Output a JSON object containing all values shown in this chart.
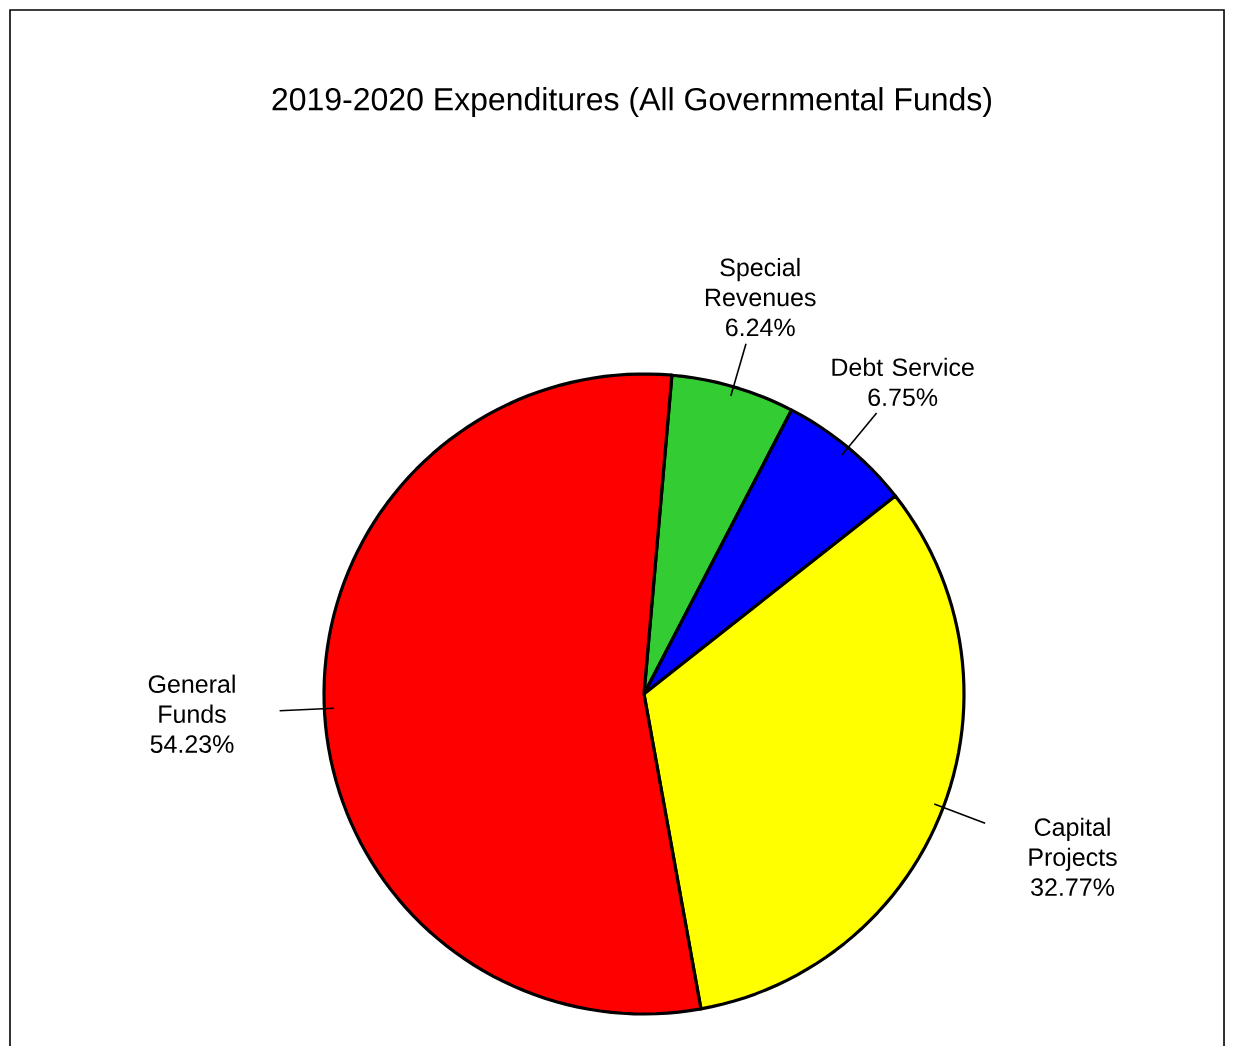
{
  "chart_data": {
    "type": "pie",
    "title": "2019-2020 Expenditures (All Governmental Funds)",
    "categories": [
      "Special Revenues",
      "Debt Service",
      "Capital Projects",
      "General Funds"
    ],
    "values": [
      6.24,
      6.75,
      32.77,
      54.23
    ],
    "colors": [
      "#33cc33",
      "#0000ff",
      "#ffff00",
      "#ff0000"
    ],
    "value_labels": [
      "6.24%",
      "6.75%",
      "32.77%",
      "54.23%"
    ]
  }
}
